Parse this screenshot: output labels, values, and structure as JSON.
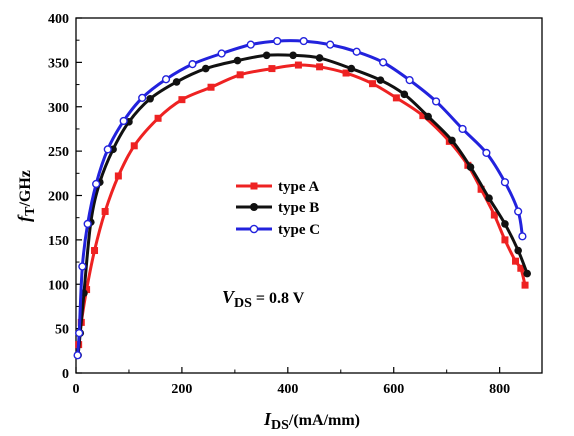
{
  "chart_data": {
    "type": "line",
    "xlabel": {
      "main": "I",
      "sub": "DS",
      "rest": "/(mA/mm)"
    },
    "ylabel": {
      "main": "f",
      "sub": "T",
      "rest": "/GHz"
    },
    "xlim": [
      0,
      880
    ],
    "ylim": [
      0,
      400
    ],
    "xticks": [
      0,
      200,
      400,
      600,
      800
    ],
    "yticks": [
      0,
      50,
      100,
      150,
      200,
      250,
      300,
      350,
      400
    ],
    "annotation": {
      "main": "V",
      "sub": "DS",
      "rest": " = 0.8 V"
    },
    "legend_position": "center-left",
    "series": [
      {
        "name": "type A",
        "color": "#ee2222",
        "marker": "square",
        "x": [
          5,
          10,
          20,
          35,
          55,
          80,
          110,
          155,
          200,
          255,
          310,
          370,
          420,
          460,
          510,
          560,
          605,
          655,
          705,
          740,
          765,
          790,
          810,
          830,
          840,
          848
        ],
        "y": [
          32,
          57,
          94,
          138,
          182,
          222,
          256,
          287,
          308,
          322,
          336,
          343,
          347,
          345,
          338,
          326,
          310,
          290,
          261,
          234,
          207,
          178,
          150,
          126,
          118,
          99
        ]
      },
      {
        "name": "type B",
        "color": "#111111",
        "marker": "circle",
        "x": [
          4,
          8,
          15,
          28,
          45,
          70,
          100,
          140,
          190,
          245,
          305,
          360,
          410,
          460,
          520,
          575,
          620,
          665,
          710,
          745,
          780,
          810,
          835,
          852
        ],
        "y": [
          20,
          45,
          90,
          170,
          215,
          252,
          283,
          309,
          328,
          343,
          352,
          358,
          358,
          355,
          343,
          330,
          314,
          289,
          262,
          232,
          197,
          168,
          138,
          112
        ]
      },
      {
        "name": "type C",
        "color": "#2222dd",
        "marker": "open-circle",
        "x": [
          3,
          6,
          12,
          22,
          38,
          60,
          90,
          125,
          170,
          220,
          275,
          330,
          380,
          430,
          480,
          530,
          580,
          630,
          680,
          730,
          775,
          810,
          835,
          843
        ],
        "y": [
          20,
          45,
          120,
          168,
          213,
          252,
          284,
          310,
          331,
          348,
          360,
          370,
          374,
          374,
          370,
          362,
          350,
          330,
          306,
          275,
          248,
          215,
          182,
          154
        ]
      }
    ]
  }
}
